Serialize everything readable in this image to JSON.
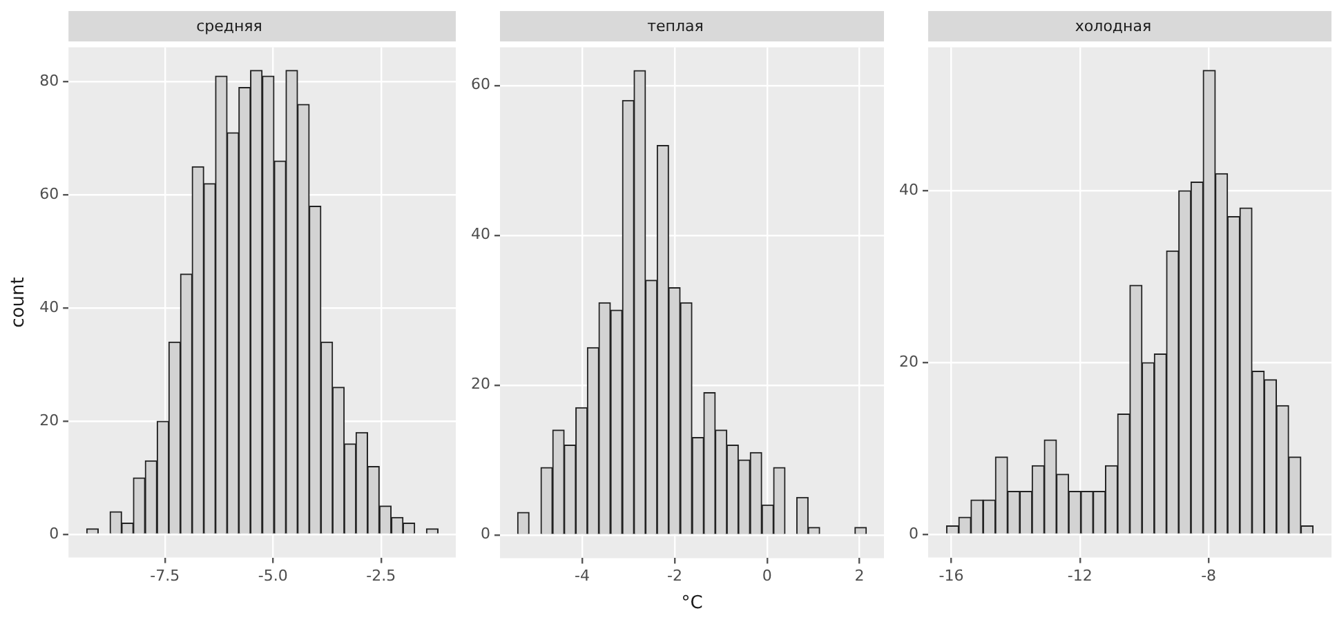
{
  "chart_data": [
    {
      "type": "histogram",
      "title": "средняя",
      "ylabel": "count",
      "color": "#d3d3d3",
      "grid": true,
      "bins": [
        -9.31,
        -9.04,
        -8.77,
        -8.5,
        -8.23,
        -7.96,
        -7.68,
        -7.41,
        -7.14,
        -6.87,
        -6.6,
        -6.33,
        -6.06,
        -5.79,
        -5.52,
        -5.25,
        -4.97,
        -4.7,
        -4.43,
        -4.16,
        -3.89,
        -3.62,
        -3.35,
        -3.08,
        -2.81,
        -2.54,
        -2.26,
        -1.99,
        -1.72,
        -1.45,
        -1.18
      ],
      "values": [
        1,
        0,
        4,
        2,
        10,
        13,
        20,
        34,
        46,
        65,
        62,
        81,
        71,
        79,
        82,
        81,
        66,
        82,
        76,
        58,
        34,
        26,
        16,
        18,
        12,
        5,
        3,
        2,
        0,
        1
      ],
      "xlim": [
        -9.73,
        -0.77
      ],
      "xticks": [
        {
          "value": -7.5,
          "label": "-7.5"
        },
        {
          "value": -5,
          "label": "-5.0"
        },
        {
          "value": -2.5,
          "label": "-2.5"
        }
      ],
      "ylim": [
        -4.1,
        86.1
      ],
      "yticks": [
        0,
        20,
        40,
        60,
        80
      ]
    },
    {
      "type": "histogram",
      "title": "теплая",
      "xlabel": "°C",
      "color": "#d3d3d3",
      "grid": true,
      "bins": [
        -5.4,
        -5.15,
        -4.9,
        -4.64,
        -4.39,
        -4.14,
        -3.89,
        -3.64,
        -3.39,
        -3.13,
        -2.88,
        -2.63,
        -2.38,
        -2.13,
        -1.88,
        -1.62,
        -1.37,
        -1.12,
        -0.87,
        -0.62,
        -0.37,
        -0.11,
        0.14,
        0.39,
        0.64,
        0.89,
        1.14,
        1.4,
        1.65,
        1.9,
        2.15
      ],
      "values": [
        3,
        0,
        9,
        14,
        12,
        17,
        25,
        31,
        30,
        58,
        62,
        34,
        52,
        33,
        31,
        13,
        19,
        14,
        12,
        10,
        11,
        4,
        9,
        0,
        5,
        1,
        0,
        0,
        0,
        1
      ],
      "xlim": [
        -5.78,
        2.53
      ],
      "xticks": [
        -4,
        -2,
        0,
        2
      ],
      "ylim": [
        -3.1,
        65.1
      ],
      "yticks": [
        0,
        20,
        40,
        60
      ]
    },
    {
      "type": "histogram",
      "title": "холодная",
      "color": "#d3d3d3",
      "grid": true,
      "bins": [
        -16.15,
        -15.77,
        -15.39,
        -15.01,
        -14.63,
        -14.25,
        -13.87,
        -13.49,
        -13.11,
        -12.73,
        -12.35,
        -11.97,
        -11.59,
        -11.21,
        -10.83,
        -10.45,
        -10.07,
        -9.69,
        -9.31,
        -8.93,
        -8.55,
        -8.17,
        -7.79,
        -7.41,
        -7.03,
        -6.65,
        -6.27,
        -5.89,
        -5.51,
        -5.13,
        -4.75
      ],
      "values": [
        1,
        2,
        4,
        4,
        9,
        5,
        5,
        8,
        11,
        7,
        5,
        5,
        5,
        8,
        14,
        29,
        20,
        21,
        33,
        40,
        41,
        54,
        42,
        37,
        38,
        19,
        18,
        15,
        9,
        1
      ],
      "xlim": [
        -16.72,
        -4.18
      ],
      "xticks": [
        -16,
        -12,
        -8
      ],
      "ylim": [
        -2.7,
        56.7
      ],
      "yticks": [
        0,
        20,
        40
      ]
    }
  ]
}
